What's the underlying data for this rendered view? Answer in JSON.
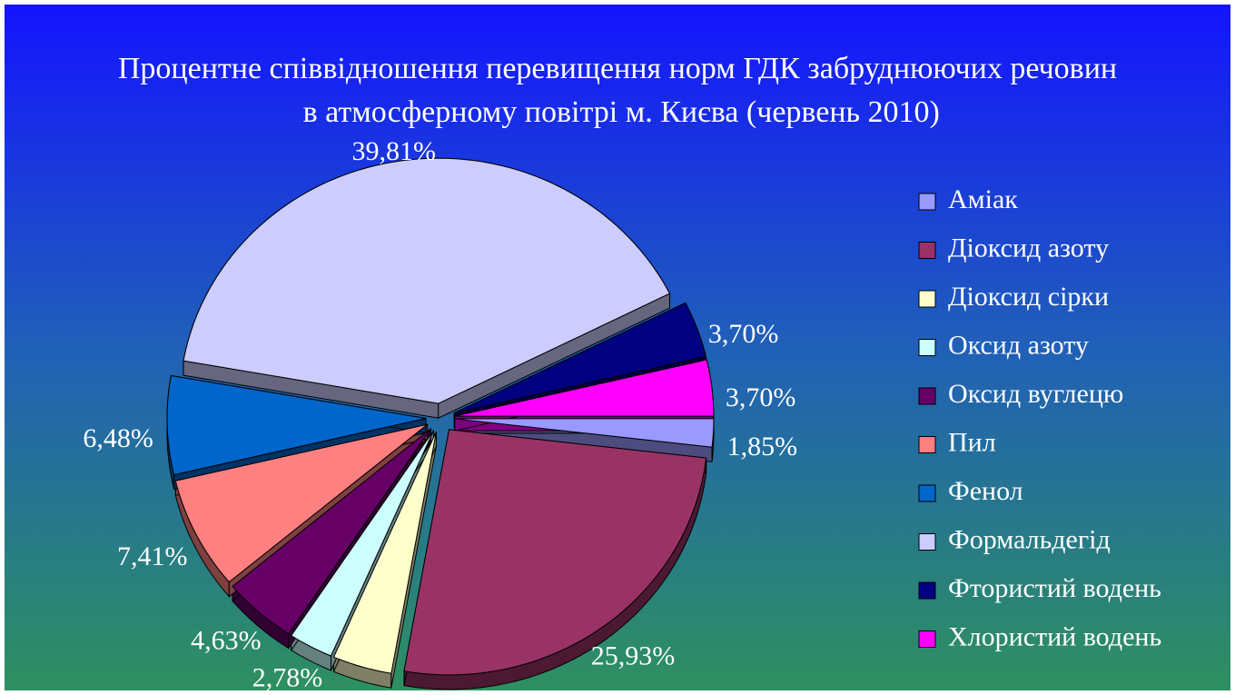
{
  "chart_data": {
    "type": "pie",
    "title": "Процентне співвідношення перевищення норм ГДК забруднюючих речовин  в атмосферному повітрі м. Києва (червень 2010)",
    "categories": [
      "Аміак",
      "Діоксид азоту",
      "Діоксид сірки",
      "Оксид азоту",
      "Оксид вуглецю",
      "Пил",
      "Фенол",
      "Формальдегід",
      "Фтористий водень",
      "Хлористий водень"
    ],
    "values": [
      1.85,
      25.93,
      3.7,
      2.78,
      4.63,
      7.41,
      6.48,
      39.81,
      3.7,
      3.7
    ],
    "value_labels": [
      "1,85%",
      "25,93%",
      null,
      "2,78%",
      "4,63%",
      "7,41%",
      "6,48%",
      "39,81%",
      "3,70%",
      "3,70%"
    ],
    "colors": [
      "#9999ff",
      "#993366",
      "#ffffcc",
      "#ccffff",
      "#660066",
      "#ff8080",
      "#0066cc",
      "#ccccff",
      "#000080",
      "#ff00ff"
    ],
    "legend": "right"
  }
}
